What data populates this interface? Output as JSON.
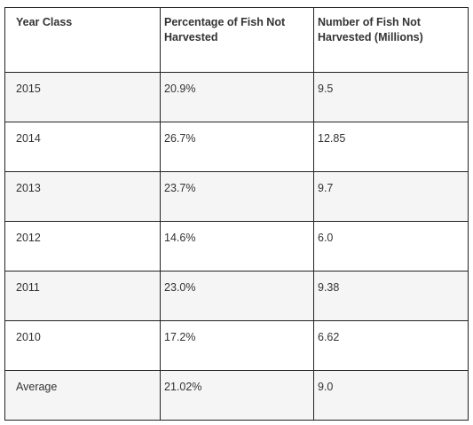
{
  "table": {
    "headers": [
      "Year Class",
      "Percentage of Fish Not Harvested",
      "Number of Fish Not Harvested (Millions)"
    ],
    "rows": [
      [
        "2015",
        "20.9%",
        "9.5"
      ],
      [
        "2014",
        "26.7%",
        "12.85"
      ],
      [
        "2013",
        "23.7%",
        "9.7"
      ],
      [
        "2012",
        "14.6%",
        "6.0"
      ],
      [
        "2011",
        "23.0%",
        "9.38"
      ],
      [
        "2010",
        "17.2%",
        "6.62"
      ],
      [
        "Average",
        "21.02%",
        "9.0"
      ]
    ]
  }
}
